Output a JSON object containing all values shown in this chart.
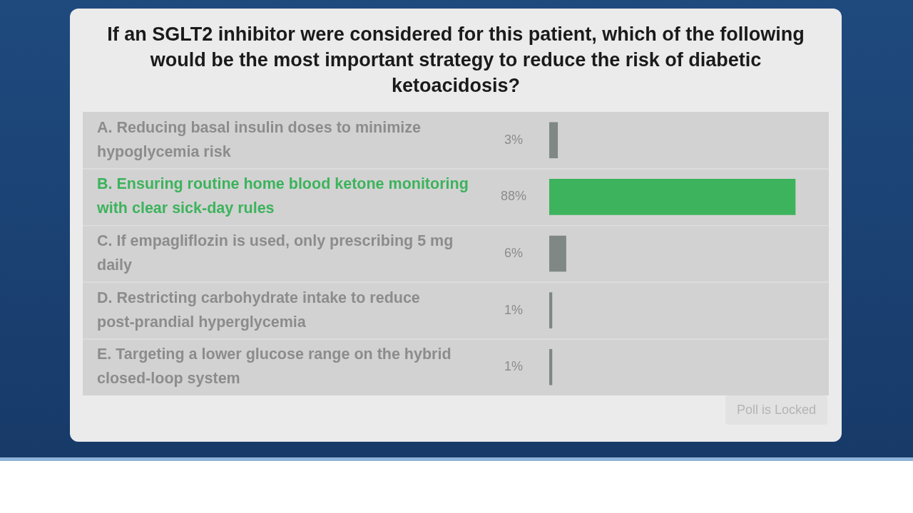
{
  "chart_data": {
    "type": "bar",
    "orientation": "horizontal",
    "title": "If an SGLT2 inhibitor were considered for this patient, which of the following would be the most important strategy to reduce the risk of diabetic ketoacidosis?",
    "categories": [
      "A. Reducing basal insulin doses to minimize hypoglycemia risk",
      "B. Ensuring routine home blood ketone monitoring with clear sick-day rules",
      "C. If empagliflozin is used, only prescribing 5 mg daily",
      "D. Restricting carbohydrate intake to reduce post-prandial hyperglycemia",
      "E. Targeting a lower glucose range on the hybrid closed-loop system"
    ],
    "values": [
      3,
      88,
      6,
      1,
      1
    ],
    "value_labels": [
      "3%",
      "88%",
      "6%",
      "1%",
      "1%"
    ],
    "colors": [
      "#7f8885",
      "#3cb35c",
      "#7f8885",
      "#7f8885",
      "#7f8885"
    ],
    "xlim": [
      0,
      100
    ],
    "tick_labels": false,
    "annotations": [
      "Poll is Locked"
    ]
  }
}
